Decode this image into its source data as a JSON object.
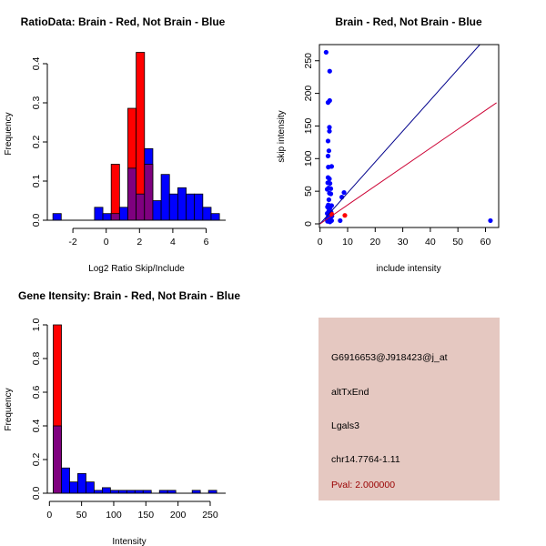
{
  "colors": {
    "red": "#FF0000",
    "blue": "#0000FF",
    "overlap": "#7F007F",
    "blue_line": "#00008B",
    "red_line": "#CC0033",
    "panel_bg": "#E5C8C1",
    "pval": "#990000"
  },
  "chart_data": [
    {
      "type": "bar",
      "title": "RatioData: Brain - Red, Not Brain - Blue",
      "xlabel": "Log2 Ratio Skip/Include",
      "ylabel": "Frequency",
      "xticks": [
        -2,
        0,
        2,
        4,
        6
      ],
      "yticks": [
        0.0,
        0.1,
        0.2,
        0.3,
        0.4
      ],
      "ytick_labels": [
        "0.0",
        "0.1",
        "0.2",
        "0.3",
        "0.4"
      ],
      "bin_width": 0.5,
      "series": [
        {
          "name": "Not Brain",
          "color": "blue",
          "bins": [
            [
              -3.2,
              0.017
            ],
            [
              -0.7,
              0.033
            ],
            [
              -0.2,
              0.017
            ],
            [
              0.3,
              0.017
            ],
            [
              0.8,
              0.033
            ],
            [
              1.3,
              0.133
            ],
            [
              1.8,
              0.067
            ],
            [
              2.3,
              0.183
            ],
            [
              2.8,
              0.05
            ],
            [
              3.3,
              0.117
            ],
            [
              3.8,
              0.067
            ],
            [
              4.3,
              0.083
            ],
            [
              4.8,
              0.067
            ],
            [
              5.3,
              0.067
            ],
            [
              5.8,
              0.033
            ],
            [
              6.3,
              0.017
            ]
          ]
        },
        {
          "name": "Brain",
          "color": "red",
          "bins": [
            [
              0.3,
              0.143
            ],
            [
              1.3,
              0.286
            ],
            [
              1.8,
              0.429
            ],
            [
              2.3,
              0.143
            ]
          ]
        }
      ]
    },
    {
      "type": "scatter",
      "title": "Brain - Red, Not Brain - Blue",
      "xlabel": "include intensity",
      "ylabel": "skip intensity",
      "xticks": [
        0,
        10,
        20,
        30,
        40,
        50,
        60
      ],
      "yticks": [
        0,
        50,
        100,
        150,
        200,
        250
      ],
      "xlim": [
        0,
        64
      ],
      "ylim": [
        0,
        275
      ],
      "series": [
        {
          "name": "Not Brain",
          "color": "blue",
          "points": [
            [
              2.2,
              263
            ],
            [
              3.5,
              234
            ],
            [
              2.9,
              186
            ],
            [
              3.5,
              189
            ],
            [
              3.4,
              148
            ],
            [
              3.4,
              142
            ],
            [
              2.9,
              127
            ],
            [
              3.2,
              112
            ],
            [
              2.9,
              104
            ],
            [
              3.0,
              87
            ],
            [
              4.2,
              88
            ],
            [
              2.9,
              71
            ],
            [
              3.4,
              69
            ],
            [
              2.8,
              63
            ],
            [
              3.6,
              62
            ],
            [
              3.1,
              55
            ],
            [
              3.9,
              54
            ],
            [
              2.6,
              53
            ],
            [
              3.4,
              47
            ],
            [
              3.9,
              46
            ],
            [
              3.2,
              37
            ],
            [
              3.0,
              29
            ],
            [
              4.2,
              28
            ],
            [
              2.7,
              26
            ],
            [
              3.6,
              24
            ],
            [
              3.2,
              20
            ],
            [
              4.0,
              18
            ],
            [
              2.6,
              16
            ],
            [
              3.4,
              14
            ],
            [
              4.3,
              12
            ],
            [
              2.9,
              10
            ],
            [
              3.7,
              9
            ],
            [
              2.5,
              7
            ],
            [
              3.2,
              6
            ],
            [
              4.2,
              5
            ],
            [
              2.7,
              4
            ],
            [
              3.6,
              3
            ],
            [
              7.9,
              41
            ],
            [
              8.7,
              48
            ],
            [
              7.3,
              5
            ],
            [
              61.8,
              5
            ]
          ]
        },
        {
          "name": "Brain",
          "color": "red",
          "points": [
            [
              4.2,
              15
            ],
            [
              9.0,
              13
            ]
          ]
        }
      ],
      "lines": [
        {
          "name": "Not Brain fit",
          "color": "blue_line",
          "slope": 4.74
        },
        {
          "name": "Brain fit",
          "color": "red_line",
          "slope": 2.9
        }
      ]
    },
    {
      "type": "bar",
      "title": "Gene Itensity: Brain - Red, Not Brain - Blue",
      "xlabel": "Intensity",
      "ylabel": "Frequency",
      "xticks": [
        0,
        50,
        100,
        150,
        200,
        250
      ],
      "yticks": [
        0.0,
        0.2,
        0.4,
        0.6,
        0.8,
        1.0
      ],
      "ytick_labels": [
        "0.0",
        "0.2",
        "0.4",
        "0.6",
        "0.8",
        "1.0"
      ],
      "bin_width": 12.7,
      "series": [
        {
          "name": "Brain",
          "color": "red",
          "bins": [
            [
              6,
              1.0
            ]
          ]
        },
        {
          "name": "Not Brain",
          "color": "blue",
          "bins": [
            [
              6,
              0.4
            ],
            [
              18.7,
              0.15
            ],
            [
              31.4,
              0.067
            ],
            [
              44.1,
              0.117
            ],
            [
              56.8,
              0.067
            ],
            [
              69.5,
              0.017
            ],
            [
              82.2,
              0.033
            ],
            [
              94.9,
              0.017
            ],
            [
              107.6,
              0.017
            ],
            [
              120.3,
              0.017
            ],
            [
              133,
              0.017
            ],
            [
              145.7,
              0.017
            ],
            [
              171.1,
              0.017
            ],
            [
              183.8,
              0.017
            ],
            [
              222,
              0.017
            ],
            [
              247.4,
              0.017
            ]
          ]
        }
      ]
    }
  ],
  "info_panel": {
    "probe_id": "G6916653@J918423@j_at",
    "event_type": "altTxEnd",
    "gene": "Lgals3",
    "location": "chr14.7764-1.11",
    "pval": "Pval: 2.000000"
  }
}
